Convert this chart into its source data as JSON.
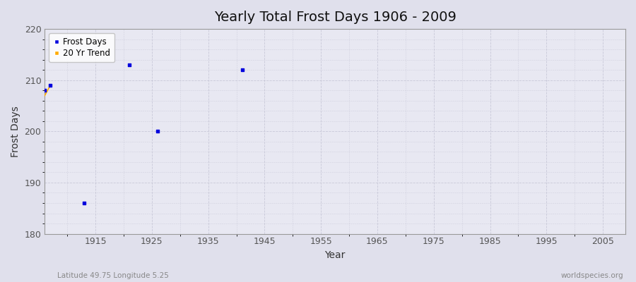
{
  "title": "Yearly Total Frost Days 1906 - 2009",
  "xlabel": "Year",
  "ylabel": "Frost Days",
  "xlim": [
    1906,
    2009
  ],
  "ylim": [
    180,
    220
  ],
  "yticks": [
    180,
    190,
    200,
    210,
    220
  ],
  "xticks": [
    1915,
    1925,
    1935,
    1945,
    1955,
    1965,
    1975,
    1985,
    1995,
    2005
  ],
  "frost_days_x": [
    1906,
    1907,
    1913,
    1921,
    1926,
    1941
  ],
  "frost_days_y": [
    208,
    209,
    186,
    213,
    200,
    212
  ],
  "trend_x": [
    1906,
    1907
  ],
  "trend_y": [
    207,
    209
  ],
  "point_color": "#0000dd",
  "trend_color": "#ffaa00",
  "fig_facecolor": "#e0e0ec",
  "axes_facecolor": "#e8e8f2",
  "grid_color": "#c8c8d8",
  "spine_color": "#999999",
  "title_fontsize": 14,
  "label_fontsize": 10,
  "tick_fontsize": 9,
  "tick_color": "#555555",
  "bottom_left_text": "Latitude 49.75 Longitude 5.25",
  "bottom_right_text": "worldspecies.org"
}
